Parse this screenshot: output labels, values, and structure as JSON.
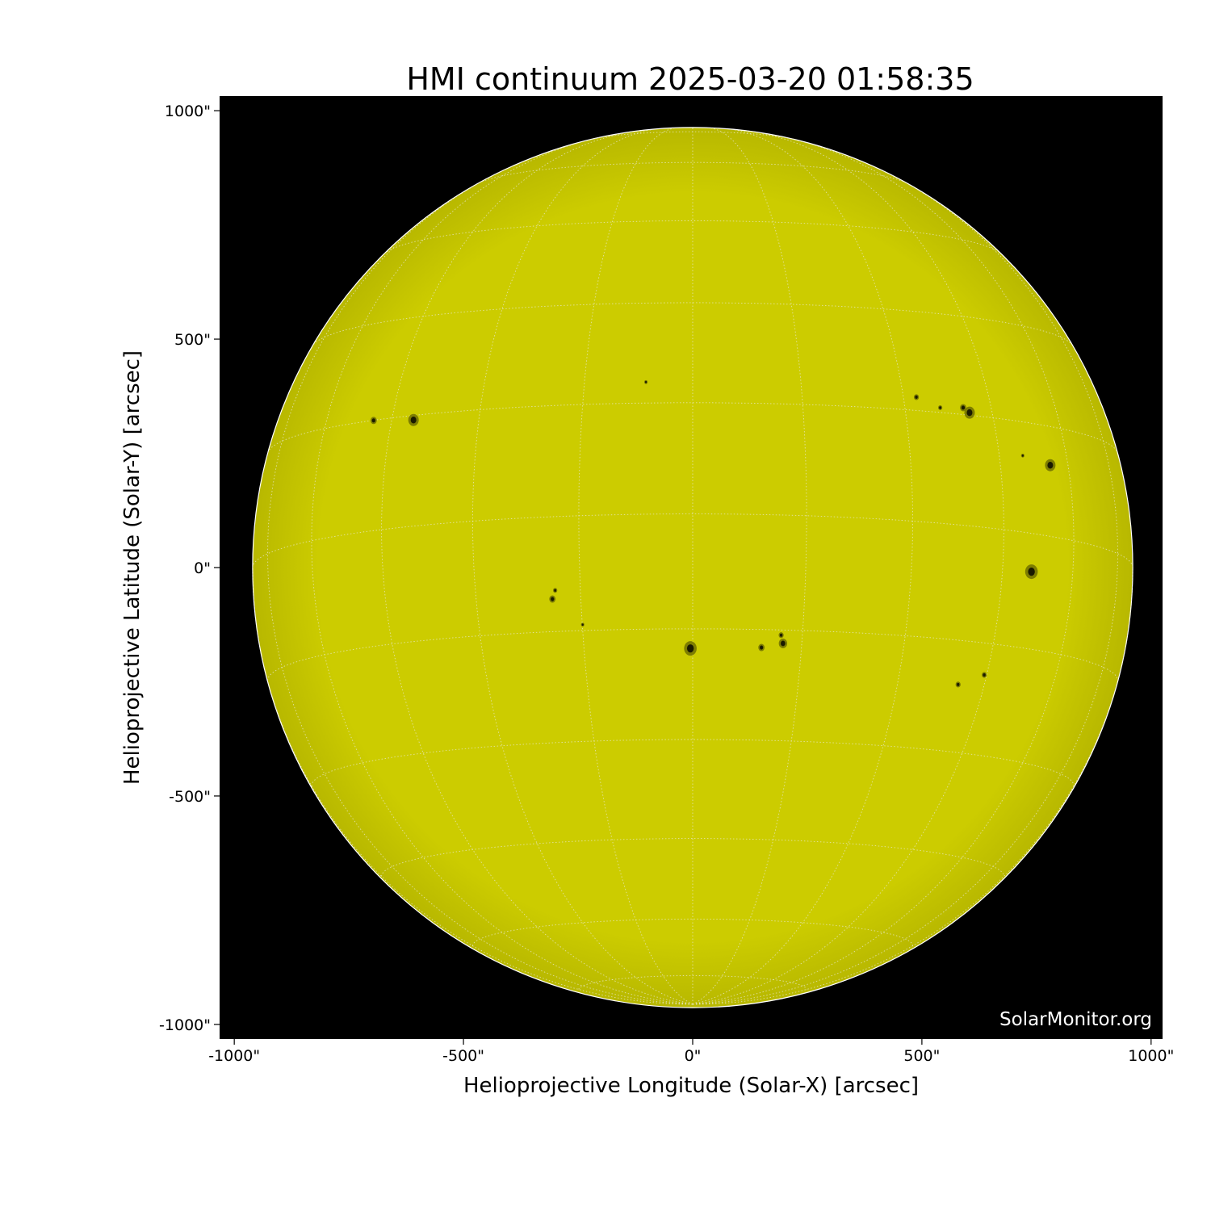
{
  "chart_data": {
    "type": "image",
    "title": "HMI continuum 2025-03-20 01:58:35",
    "xlabel": "Helioprojective Longitude (Solar-X) [arcsec]",
    "ylabel": "Helioprojective Latitude (Solar-Y) [arcsec]",
    "xlim": [
      -1032,
      1025
    ],
    "ylim": [
      -1032,
      1032
    ],
    "x_ticks": [
      -1000,
      -500,
      0,
      500,
      1000
    ],
    "x_tick_labels": [
      "-1000\"",
      "-500\"",
      "0\"",
      "500\"",
      "1000\""
    ],
    "y_ticks": [
      1000,
      500,
      0,
      -500,
      -1000
    ],
    "y_tick_labels": [
      "1000\"",
      "500\"",
      "0\"",
      "-500\"",
      "-1000\""
    ],
    "solar_radius_arcsec": 960,
    "grid": "heliographic, 15 degree spacing, dotted white",
    "colors": {
      "disk": "#cccc00",
      "background": "#000000",
      "sunspot": "#1a1a00",
      "penumbra": "#6e6e00",
      "grid": "#e8e8c8"
    },
    "sunspots": [
      {
        "x": -5,
        "y": -177,
        "size": 3
      },
      {
        "x": -609,
        "y": 323,
        "size": 2.5
      },
      {
        "x": -696,
        "y": 322,
        "size": 1.5
      },
      {
        "x": 604,
        "y": 339,
        "size": 2.5
      },
      {
        "x": 590,
        "y": 350,
        "size": 1.5
      },
      {
        "x": 780,
        "y": 224,
        "size": 2.5
      },
      {
        "x": 739,
        "y": -9,
        "size": 3
      },
      {
        "x": 197,
        "y": -166,
        "size": 2
      },
      {
        "x": 193,
        "y": -148,
        "size": 1.2
      },
      {
        "x": 150,
        "y": -175,
        "size": 1.5
      },
      {
        "x": -306,
        "y": -69,
        "size": 1.5
      },
      {
        "x": -300,
        "y": -50,
        "size": 1
      },
      {
        "x": 636,
        "y": -235,
        "size": 1.2
      },
      {
        "x": 579,
        "y": -256,
        "size": 1.2
      },
      {
        "x": 488,
        "y": 373,
        "size": 1.2
      },
      {
        "x": 540,
        "y": 350,
        "size": 1
      },
      {
        "x": -102,
        "y": 406,
        "size": 0.8
      },
      {
        "x": -240,
        "y": -125,
        "size": 0.8
      },
      {
        "x": 720,
        "y": 245,
        "size": 0.8
      }
    ]
  },
  "watermark": "SolarMonitor.org"
}
